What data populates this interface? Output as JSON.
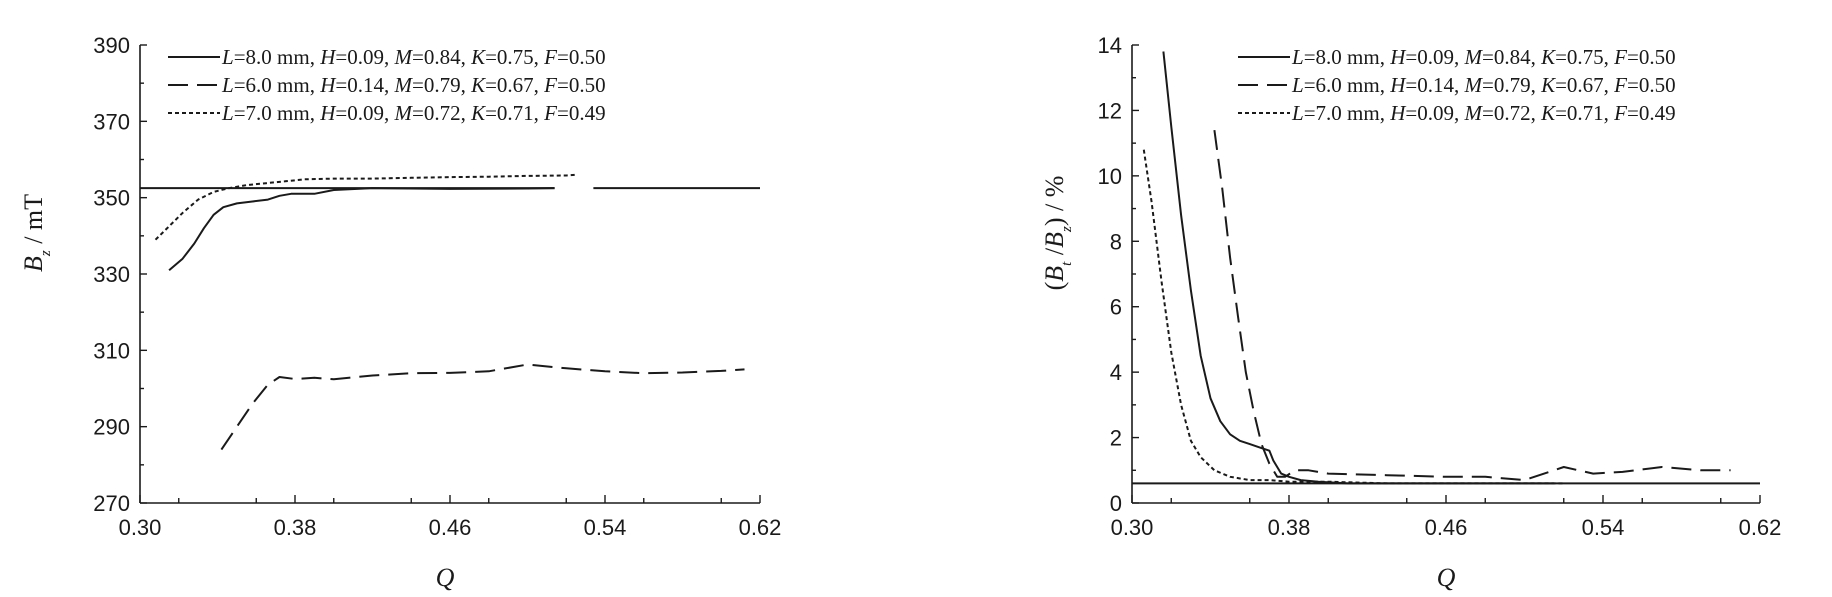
{
  "chart_data": [
    {
      "type": "line",
      "xlabel": "Q",
      "ylabel": "B_z / mT",
      "xlim": [
        0.3,
        0.62
      ],
      "ylim": [
        270,
        390
      ],
      "xticks": [
        "0.30",
        "0.38",
        "0.46",
        "0.54",
        "0.62"
      ],
      "yticks": [
        "270",
        "290",
        "310",
        "330",
        "350",
        "370",
        "390"
      ],
      "legend_position": "top-right",
      "series": [
        {
          "name": "L=8.0 mm, H=0.09, M=0.84, K=0.75, F=0.50",
          "dash": "solid",
          "x": [
            0.315,
            0.322,
            0.328,
            0.333,
            0.338,
            0.343,
            0.35,
            0.358,
            0.366,
            0.372,
            0.378,
            0.39,
            0.4,
            0.42,
            0.46,
            0.5,
            0.514
          ],
          "y": [
            331.0,
            334.0,
            338.0,
            342.0,
            345.5,
            347.5,
            348.5,
            349.0,
            349.5,
            350.5,
            351.0,
            351.0,
            352.0,
            352.5,
            352.3,
            352.4,
            352.5
          ]
        },
        {
          "name": "L=6.0 mm, H=0.14, M=0.79, K=0.67, F=0.50",
          "dash": "long-dash",
          "x": [
            0.342,
            0.35,
            0.358,
            0.366,
            0.372,
            0.38,
            0.39,
            0.4,
            0.42,
            0.44,
            0.46,
            0.48,
            0.5,
            0.52,
            0.54,
            0.56,
            0.58,
            0.6,
            0.612
          ],
          "y": [
            284.0,
            290.0,
            296.0,
            301.0,
            303.0,
            302.5,
            302.8,
            302.4,
            303.4,
            304.0,
            304.1,
            304.5,
            306.3,
            305.3,
            304.5,
            304.0,
            304.2,
            304.6,
            305.0
          ]
        },
        {
          "name": "L=7.0 mm, H=0.09, M=0.72, K=0.71, F=0.49",
          "dash": "short-dash",
          "x": [
            0.308,
            0.315,
            0.322,
            0.33,
            0.338,
            0.346,
            0.355,
            0.365,
            0.375,
            0.385,
            0.4,
            0.42,
            0.44,
            0.46,
            0.48,
            0.5,
            0.52,
            0.525
          ],
          "y": [
            339.0,
            342.5,
            346.0,
            349.5,
            351.5,
            352.5,
            353.3,
            353.8,
            354.3,
            354.8,
            355.0,
            355.0,
            355.2,
            355.4,
            355.5,
            355.7,
            355.8,
            356.0
          ]
        }
      ],
      "reference_line": {
        "y": 352.5,
        "segments": [
          [
            0.3,
            0.514
          ],
          [
            0.534,
            0.62
          ]
        ]
      }
    },
    {
      "type": "line",
      "xlabel": "Q",
      "ylabel": "(B_t /B_z) / %",
      "xlim": [
        0.3,
        0.62
      ],
      "ylim": [
        0,
        14
      ],
      "xticks": [
        "0.30",
        "0.38",
        "0.46",
        "0.54",
        "0.62"
      ],
      "yticks": [
        "0",
        "2",
        "4",
        "6",
        "8",
        "10",
        "12",
        "14"
      ],
      "legend_position": "top-right",
      "series": [
        {
          "name": "L=8.0 mm, H=0.09, M=0.84, K=0.75, F=0.50",
          "dash": "solid",
          "x": [
            0.316,
            0.32,
            0.325,
            0.33,
            0.335,
            0.34,
            0.345,
            0.35,
            0.355,
            0.36,
            0.365,
            0.37,
            0.372,
            0.376,
            0.38,
            0.386,
            0.395,
            0.41,
            0.43,
            0.46,
            0.49,
            0.515
          ],
          "y": [
            13.8,
            11.5,
            8.8,
            6.5,
            4.5,
            3.2,
            2.5,
            2.1,
            1.9,
            1.8,
            1.7,
            1.6,
            1.3,
            0.9,
            0.8,
            0.7,
            0.65,
            0.6,
            0.6,
            0.6,
            0.6,
            0.6
          ]
        },
        {
          "name": "L=6.0 mm, H=0.14, M=0.79, K=0.67, F=0.50",
          "dash": "long-dash",
          "x": [
            0.342,
            0.346,
            0.35,
            0.354,
            0.358,
            0.362,
            0.366,
            0.37,
            0.374,
            0.378,
            0.383,
            0.39,
            0.4,
            0.43,
            0.46,
            0.48,
            0.5,
            0.52,
            0.535,
            0.55,
            0.57,
            0.59,
            0.605
          ],
          "y": [
            11.4,
            9.6,
            7.5,
            5.7,
            4.0,
            2.8,
            1.8,
            1.2,
            0.8,
            0.8,
            1.0,
            1.0,
            0.9,
            0.85,
            0.8,
            0.8,
            0.7,
            1.1,
            0.9,
            0.95,
            1.1,
            1.0,
            1.0
          ]
        },
        {
          "name": "L=7.0 mm, H=0.09, M=0.72, K=0.71, F=0.49",
          "dash": "short-dash",
          "x": [
            0.306,
            0.31,
            0.315,
            0.32,
            0.325,
            0.33,
            0.335,
            0.342,
            0.35,
            0.36,
            0.37,
            0.38,
            0.4,
            0.43,
            0.46,
            0.49,
            0.52
          ],
          "y": [
            10.8,
            9.2,
            6.8,
            4.6,
            3.0,
            1.9,
            1.4,
            1.0,
            0.8,
            0.7,
            0.7,
            0.65,
            0.65,
            0.6,
            0.6,
            0.6,
            0.6
          ]
        }
      ],
      "reference_line": {
        "y": 0.6,
        "segments": [
          [
            0.3,
            0.62
          ]
        ]
      }
    }
  ]
}
